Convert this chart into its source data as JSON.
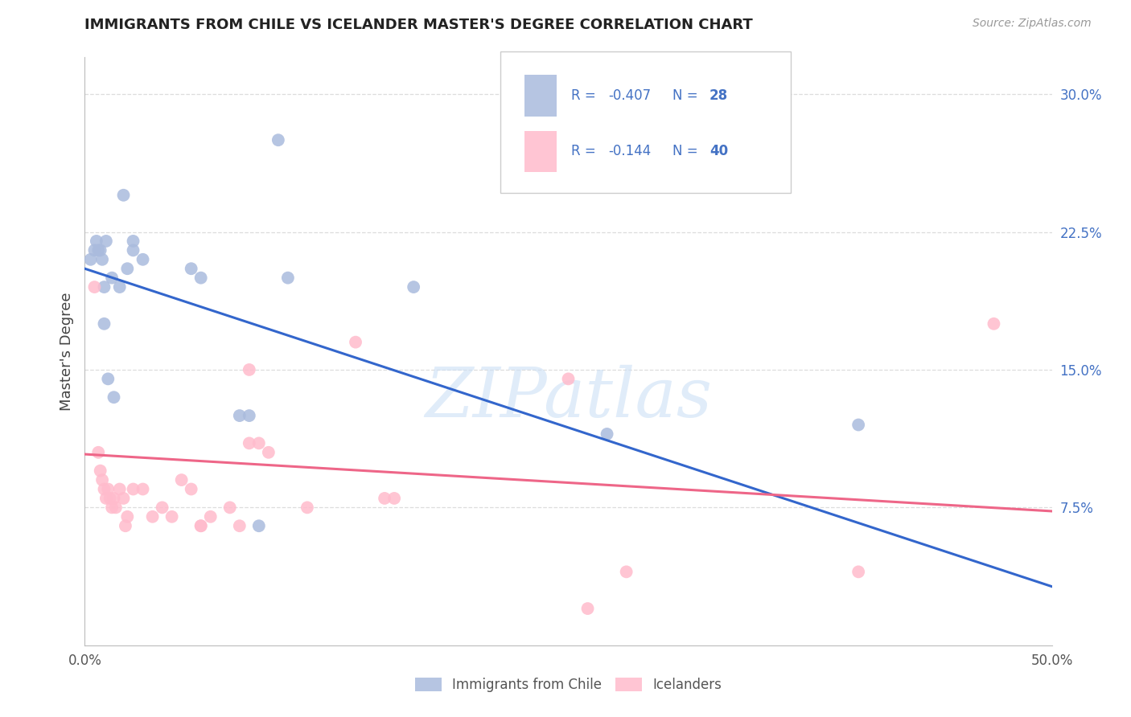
{
  "title": "IMMIGRANTS FROM CHILE VS ICELANDER MASTER'S DEGREE CORRELATION CHART",
  "source": "Source: ZipAtlas.com",
  "ylabel": "Master's Degree",
  "xmin": 0.0,
  "xmax": 0.5,
  "ymin": 0.0,
  "ymax": 0.32,
  "blue_color": "#aabbdd",
  "pink_color": "#ffbbcc",
  "line_blue": "#3366cc",
  "line_pink": "#ee6688",
  "watermark": "ZIPatlas",
  "blue_x": [
    0.003,
    0.005,
    0.006,
    0.007,
    0.008,
    0.009,
    0.01,
    0.01,
    0.011,
    0.012,
    0.014,
    0.015,
    0.018,
    0.02,
    0.022,
    0.025,
    0.025,
    0.03,
    0.055,
    0.06,
    0.08,
    0.085,
    0.09,
    0.1,
    0.105,
    0.17,
    0.27,
    0.4
  ],
  "blue_y": [
    0.21,
    0.215,
    0.22,
    0.215,
    0.215,
    0.21,
    0.175,
    0.195,
    0.22,
    0.145,
    0.2,
    0.135,
    0.195,
    0.245,
    0.205,
    0.22,
    0.215,
    0.21,
    0.205,
    0.2,
    0.125,
    0.125,
    0.065,
    0.275,
    0.2,
    0.195,
    0.115,
    0.12
  ],
  "pink_x": [
    0.005,
    0.007,
    0.008,
    0.009,
    0.01,
    0.011,
    0.012,
    0.013,
    0.014,
    0.015,
    0.016,
    0.018,
    0.02,
    0.021,
    0.022,
    0.025,
    0.03,
    0.035,
    0.04,
    0.045,
    0.05,
    0.055,
    0.06,
    0.06,
    0.065,
    0.075,
    0.08,
    0.085,
    0.085,
    0.09,
    0.095,
    0.115,
    0.14,
    0.155,
    0.16,
    0.25,
    0.26,
    0.28,
    0.4,
    0.47
  ],
  "pink_y": [
    0.195,
    0.105,
    0.095,
    0.09,
    0.085,
    0.08,
    0.085,
    0.08,
    0.075,
    0.08,
    0.075,
    0.085,
    0.08,
    0.065,
    0.07,
    0.085,
    0.085,
    0.07,
    0.075,
    0.07,
    0.09,
    0.085,
    0.065,
    0.065,
    0.07,
    0.075,
    0.065,
    0.15,
    0.11,
    0.11,
    0.105,
    0.075,
    0.165,
    0.08,
    0.08,
    0.145,
    0.02,
    0.04,
    0.04,
    0.175
  ],
  "blue_line_x0": 0.0,
  "blue_line_x1": 0.5,
  "blue_line_y0": 0.205,
  "blue_line_y1": 0.032,
  "pink_line_x0": 0.0,
  "pink_line_x1": 0.5,
  "pink_line_y0": 0.104,
  "pink_line_y1": 0.073,
  "ytick_positions": [
    0.075,
    0.15,
    0.225,
    0.3
  ],
  "ytick_labels": [
    "7.5%",
    "15.0%",
    "22.5%",
    "30.0%"
  ],
  "grid_color": "#dddddd",
  "background_color": "#ffffff",
  "text_color": "#4472c4",
  "legend_text_color": "#4472c4"
}
